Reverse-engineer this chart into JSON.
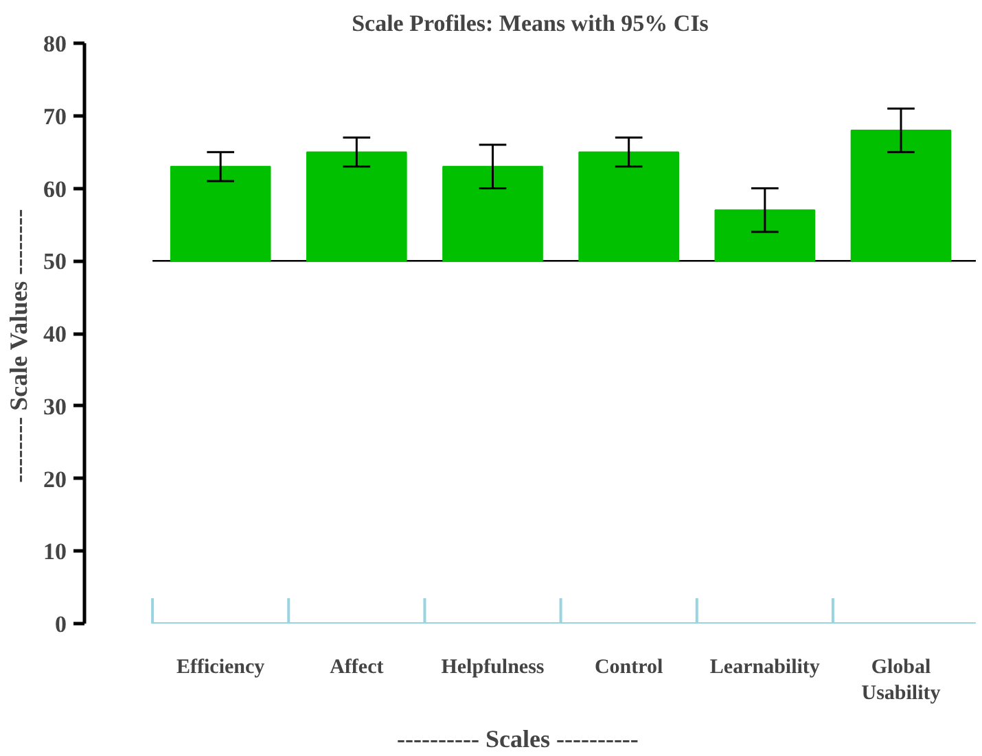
{
  "chart_data": {
    "type": "bar",
    "title": "Scale Profiles: Means with 95% CIs",
    "xlabel": "----------   Scales   ----------",
    "ylabel": "--------   Scale Values   --------",
    "categories": [
      "Efficiency",
      "Affect",
      "Helpfulness",
      "Control",
      "Learnability",
      "Global Usability"
    ],
    "base": [
      50,
      50,
      50,
      50,
      50,
      50
    ],
    "values": [
      13,
      15,
      13,
      15,
      7,
      18
    ],
    "errors": [
      2,
      2,
      3,
      2,
      3,
      3
    ],
    "color": "#00c000",
    "ylim": [
      0,
      80
    ],
    "yticks": [
      0,
      10,
      20,
      30,
      40,
      50,
      60,
      70,
      80
    ],
    "ref_lines": [
      {
        "axis": "y",
        "value": 50,
        "color": "#000000"
      }
    ],
    "grid": false
  }
}
